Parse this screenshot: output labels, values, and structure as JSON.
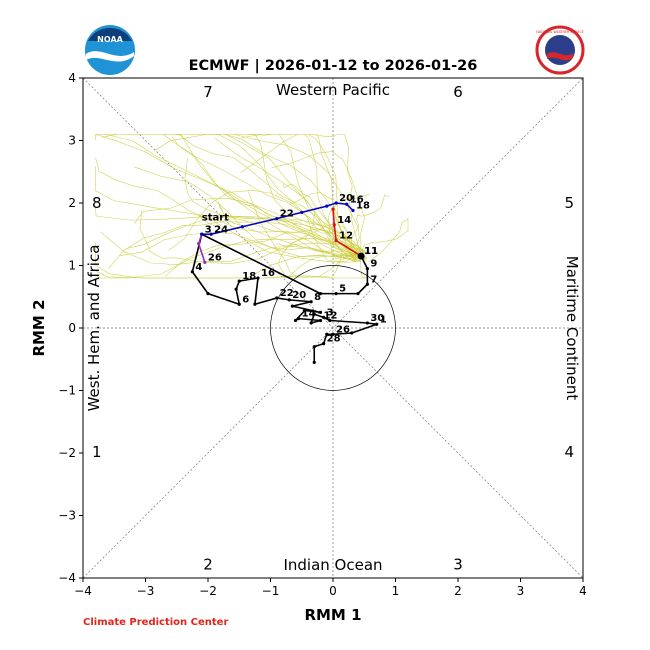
{
  "chart_data": {
    "type": "line",
    "title": "ECMWF | 2026-01-12 to 2026-01-26",
    "xlabel": "RMM 1",
    "ylabel": "RMM 2",
    "xlim": [
      -4,
      4
    ],
    "ylim": [
      -4,
      4
    ],
    "xticks": [
      "−4",
      "−3",
      "−2",
      "−1",
      "0",
      "1",
      "2",
      "3",
      "4"
    ],
    "yticks": [
      "−4",
      "−3",
      "−2",
      "−1",
      "0",
      "1",
      "2",
      "3",
      "4"
    ],
    "regions": {
      "top": "Western Pacific",
      "bottom": "Indian Ocean",
      "left": "West. Hem. and Africa",
      "right": "Maritime Continent"
    },
    "phases": [
      "1",
      "2",
      "3",
      "4",
      "5",
      "6",
      "7",
      "8"
    ],
    "credit": "Climate Prediction Center",
    "logos": {
      "left": "NOAA",
      "right": "NATIONAL WEATHER SERVICE"
    },
    "start_label": "start",
    "colors": {
      "observed": "#000000",
      "past_segment": "#9a2bb8",
      "forecast_mean": "#0000cc",
      "forecast_late": "#dd1111",
      "ensemble": "#c9cc3a",
      "noaa_blue": "#1f93d6",
      "nws_red": "#d8262b"
    },
    "observed_track": [
      {
        "label": "",
        "x": -0.3,
        "y": -0.55
      },
      {
        "label": "",
        "x": -0.3,
        "y": -0.3
      },
      {
        "label": "28",
        "x": -0.15,
        "y": -0.25
      },
      {
        "label": "",
        "x": -0.1,
        "y": -0.1
      },
      {
        "label": "26",
        "x": 0.0,
        "y": -0.1
      },
      {
        "label": "",
        "x": 0.3,
        "y": -0.08
      },
      {
        "label": "1",
        "x": 0.7,
        "y": 0.06
      },
      {
        "label": "30",
        "x": 0.55,
        "y": 0.08
      },
      {
        "label": "",
        "x": -0.05,
        "y": 0.12
      },
      {
        "label": "3",
        "x": -0.15,
        "y": 0.17
      },
      {
        "label": "",
        "x": -0.3,
        "y": 0.22
      },
      {
        "label": "",
        "x": -0.35,
        "y": 0.08
      },
      {
        "label": "12",
        "x": -0.2,
        "y": 0.12
      },
      {
        "label": "14",
        "x": -0.55,
        "y": 0.15
      },
      {
        "label": "",
        "x": -0.6,
        "y": 0.12
      },
      {
        "label": "",
        "x": -0.45,
        "y": 0.28
      },
      {
        "label": "",
        "x": -0.2,
        "y": 0.25
      },
      {
        "label": "",
        "x": -0.65,
        "y": 0.35
      },
      {
        "label": "8",
        "x": -0.35,
        "y": 0.42
      },
      {
        "label": "20",
        "x": -0.7,
        "y": 0.45
      },
      {
        "label": "22",
        "x": -0.9,
        "y": 0.48
      },
      {
        "label": "",
        "x": -1.25,
        "y": 0.38
      },
      {
        "label": "16",
        "x": -1.2,
        "y": 0.8
      },
      {
        "label": "18",
        "x": -1.5,
        "y": 0.75
      },
      {
        "label": "",
        "x": -1.55,
        "y": 0.62
      },
      {
        "label": "6",
        "x": -1.5,
        "y": 0.38
      },
      {
        "label": "",
        "x": -2.0,
        "y": 0.55
      },
      {
        "label": "4",
        "x": -2.25,
        "y": 0.9
      },
      {
        "label": "",
        "x": -2.1,
        "y": 1.5
      },
      {
        "label": "",
        "x": -0.2,
        "y": 0.55
      },
      {
        "label": "5",
        "x": 0.05,
        "y": 0.55
      },
      {
        "label": "",
        "x": 0.4,
        "y": 0.55
      },
      {
        "label": "7",
        "x": 0.55,
        "y": 0.7
      },
      {
        "label": "9",
        "x": 0.55,
        "y": 0.95
      },
      {
        "label": "11",
        "x": 0.45,
        "y": 1.15
      }
    ],
    "past_segment": [
      {
        "label": "3",
        "x": -2.1,
        "y": 1.5
      },
      {
        "label": "",
        "x": -2.15,
        "y": 1.35
      },
      {
        "label": "26",
        "x": -2.05,
        "y": 1.05
      }
    ],
    "forecast_mean": [
      {
        "label": "",
        "x": -2.1,
        "y": 1.5
      },
      {
        "label": "24",
        "x": -1.95,
        "y": 1.5
      },
      {
        "label": "",
        "x": -1.45,
        "y": 1.62
      },
      {
        "label": "22",
        "x": -0.9,
        "y": 1.75
      },
      {
        "label": "",
        "x": -0.5,
        "y": 1.85
      },
      {
        "label": "",
        "x": -0.1,
        "y": 1.95
      },
      {
        "label": "20",
        "x": 0.05,
        "y": 2.0
      },
      {
        "label": "16",
        "x": 0.22,
        "y": 1.98
      },
      {
        "label": "18",
        "x": 0.32,
        "y": 1.88
      }
    ],
    "forecast_late": [
      {
        "label": "",
        "x": 0.0,
        "y": 1.9
      },
      {
        "label": "14",
        "x": 0.02,
        "y": 1.65
      },
      {
        "label": "12",
        "x": 0.05,
        "y": 1.4
      },
      {
        "label": "11",
        "x": 0.45,
        "y": 1.15
      }
    ]
  }
}
